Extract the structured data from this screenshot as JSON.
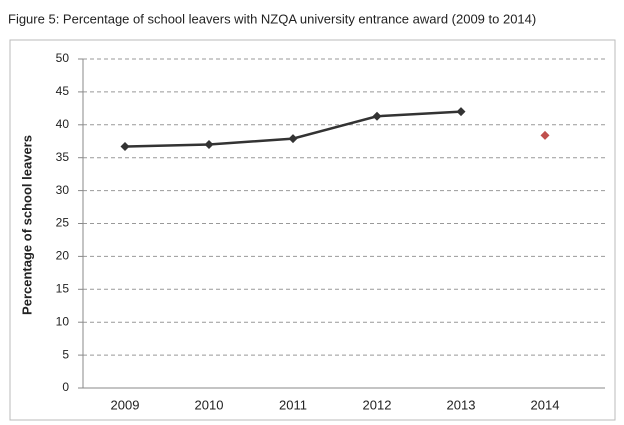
{
  "chart_data": {
    "type": "line",
    "title": "Figure 5: Percentage of school leavers with NZQA university entrance award (2009 to 2014)",
    "y_label": "Percentage of school leavers",
    "categories": [
      "2009",
      "2010",
      "2011",
      "2012",
      "2013",
      "2014"
    ],
    "series": [
      {
        "color": "#333333",
        "show_line": true,
        "values": [
          36.7,
          37.0,
          37.9,
          41.3,
          42.0,
          null
        ]
      },
      {
        "color": "#c0504d",
        "show_line": false,
        "values": [
          null,
          null,
          null,
          null,
          null,
          38.4
        ]
      }
    ],
    "ylim": [
      0,
      50
    ],
    "yticks": [
      0,
      5,
      10,
      15,
      20,
      25,
      30,
      35,
      40,
      45,
      50
    ],
    "grid": true
  }
}
